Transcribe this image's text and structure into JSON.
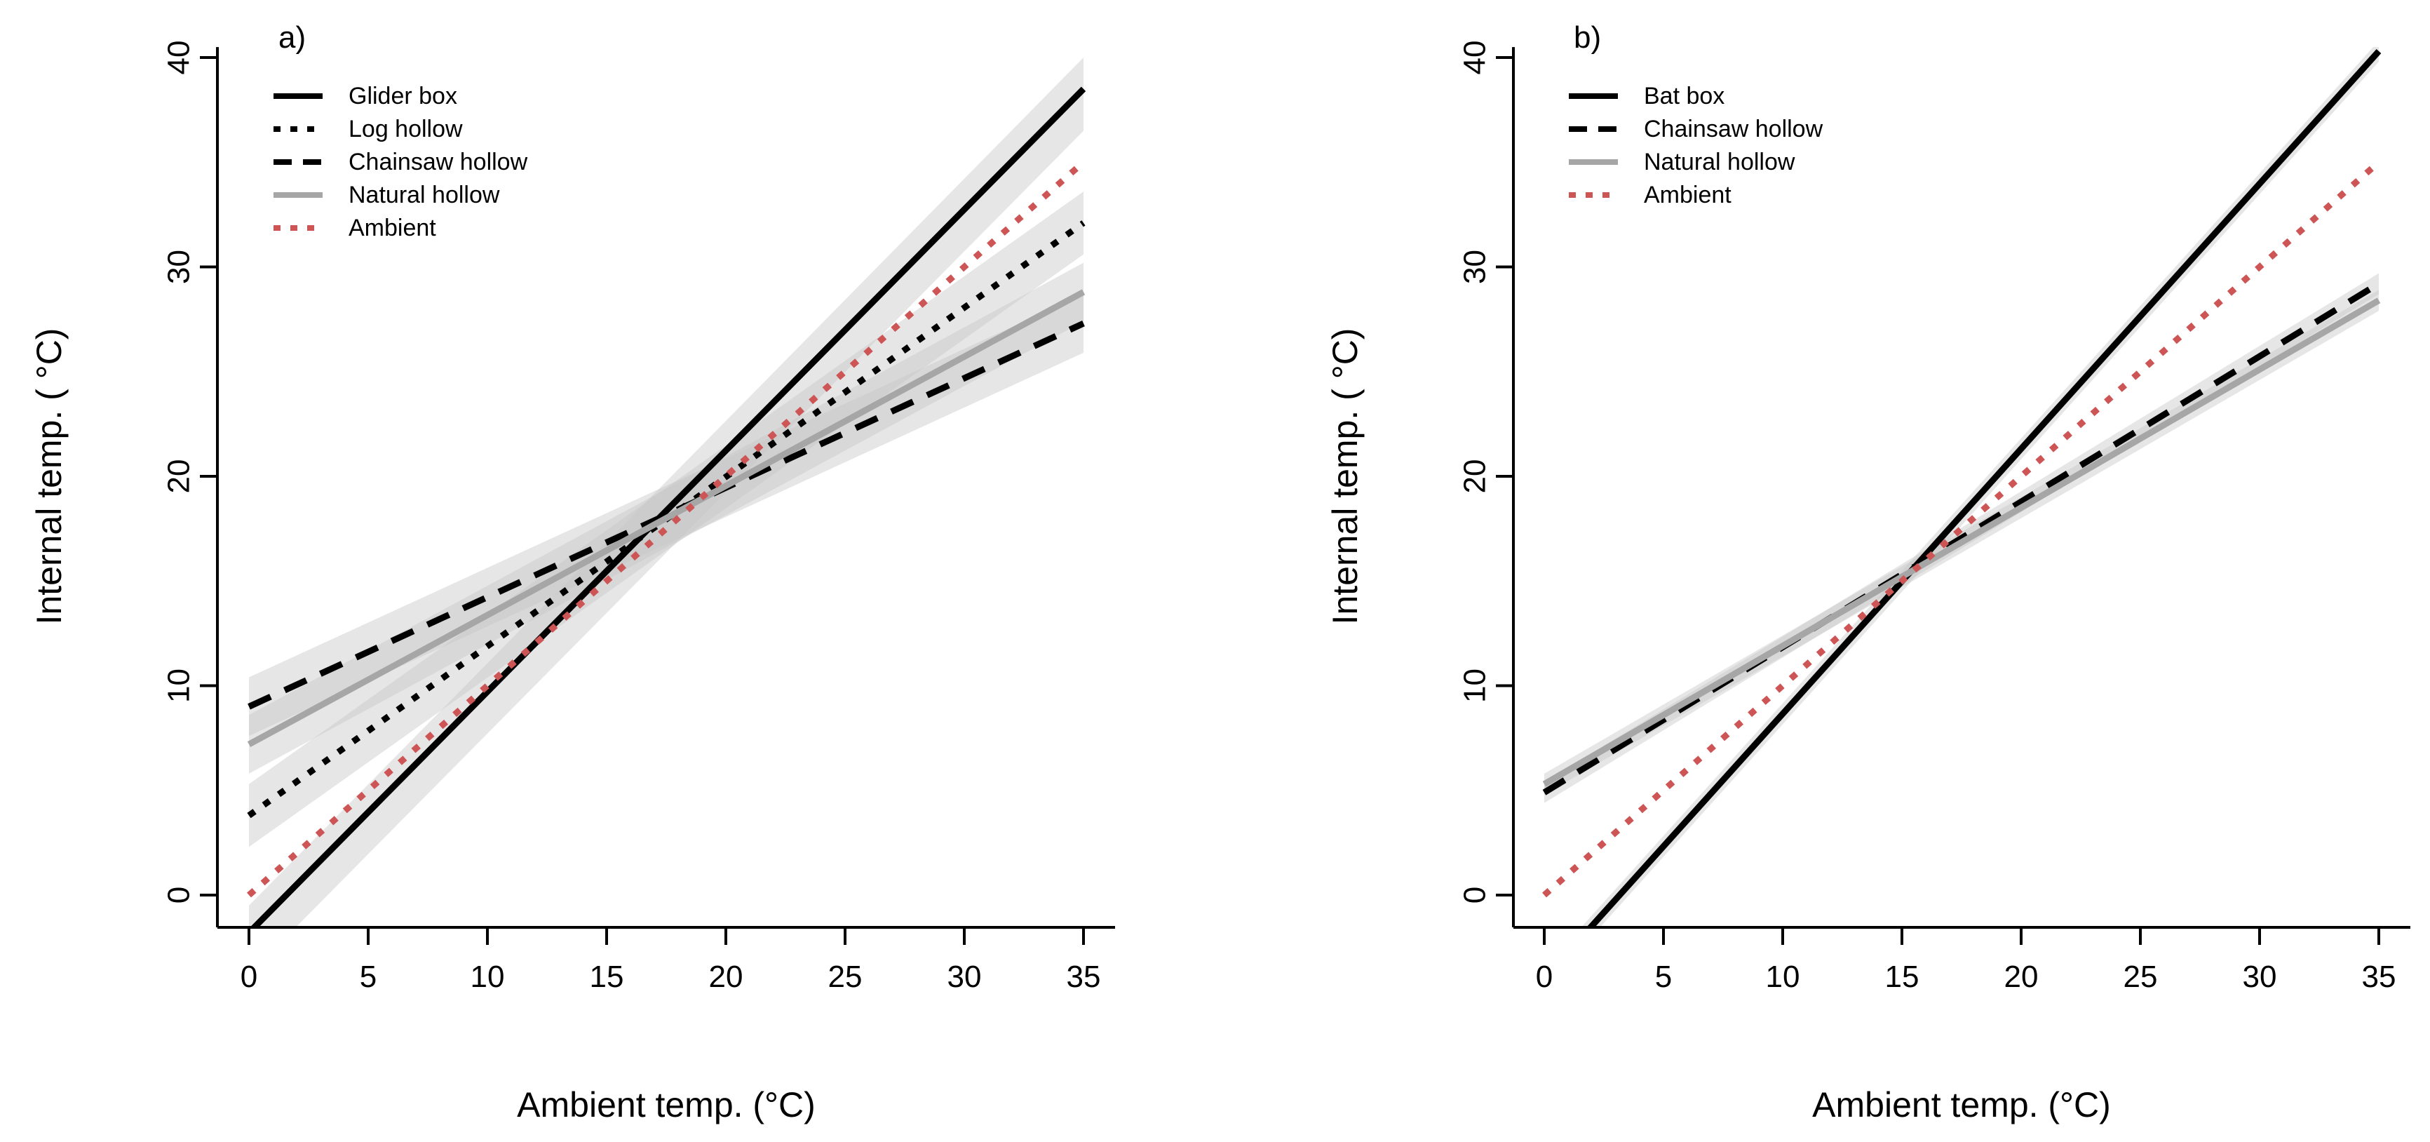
{
  "chart_data": [
    {
      "type": "line",
      "panel_label": "a)",
      "xlabel": "Ambient temp. (°C)",
      "ylabel": "Internal temp. ( °C)",
      "xlim": [
        0,
        35
      ],
      "ylim": [
        -1.5,
        40.5
      ],
      "xticks": [
        0,
        5,
        10,
        15,
        20,
        25,
        30,
        35
      ],
      "yticks": [
        0,
        10,
        20,
        30,
        40
      ],
      "grid": false,
      "legend_position": "top-left",
      "confidence_bands": true,
      "series": [
        {
          "name": "Glider box",
          "x": [
            0,
            35
          ],
          "y": [
            -1.8,
            38.5
          ],
          "ci": [
            [
              -3.8,
              -0.5
            ],
            [
              36.5,
              40.0
            ]
          ],
          "style": "solid",
          "color": "#000000"
        },
        {
          "name": "Log hollow",
          "x": [
            0,
            35
          ],
          "y": [
            3.8,
            32.1
          ],
          "ci": [
            [
              2.3,
              5.3
            ],
            [
              30.6,
              33.6
            ]
          ],
          "style": "dotted",
          "color": "#000000"
        },
        {
          "name": "Chainsaw hollow",
          "x": [
            0,
            35
          ],
          "y": [
            9.0,
            27.3
          ],
          "ci": [
            [
              7.6,
              10.4
            ],
            [
              25.9,
              28.7
            ]
          ],
          "style": "dashed",
          "color": "#000000"
        },
        {
          "name": "Natural hollow",
          "x": [
            0,
            35
          ],
          "y": [
            7.2,
            28.8
          ],
          "ci": [
            [
              5.8,
              8.6
            ],
            [
              27.4,
              30.2
            ]
          ],
          "style": "solid",
          "color": "#a6a6a6"
        },
        {
          "name": "Ambient",
          "x": [
            0,
            35
          ],
          "y": [
            0,
            35
          ],
          "style": "dotted",
          "color": "#cd5555"
        }
      ]
    },
    {
      "type": "line",
      "panel_label": "b)",
      "xlabel": "Ambient temp. (°C)",
      "ylabel": "Internal temp. ( °C)",
      "xlim": [
        0,
        35
      ],
      "ylim": [
        -1.5,
        40.5
      ],
      "xticks": [
        0,
        5,
        10,
        15,
        20,
        25,
        30,
        35
      ],
      "yticks": [
        0,
        10,
        20,
        30,
        40
      ],
      "grid": false,
      "legend_position": "top-left",
      "confidence_bands": true,
      "series": [
        {
          "name": "Bat box",
          "x": [
            0,
            35
          ],
          "y": [
            -4.0,
            40.3
          ],
          "ci": [
            [
              -4.5,
              -3.5
            ],
            [
              39.8,
              40.8
            ]
          ],
          "style": "solid",
          "color": "#000000"
        },
        {
          "name": "Chainsaw hollow",
          "x": [
            0,
            35
          ],
          "y": [
            4.9,
            29.2
          ],
          "ci": [
            [
              4.4,
              5.4
            ],
            [
              28.7,
              29.7
            ]
          ],
          "style": "dashed",
          "color": "#000000"
        },
        {
          "name": "Natural hollow",
          "x": [
            0,
            35
          ],
          "y": [
            5.3,
            28.4
          ],
          "ci": [
            [
              4.8,
              5.8
            ],
            [
              27.9,
              28.9
            ]
          ],
          "style": "solid",
          "color": "#a6a6a6"
        },
        {
          "name": "Ambient",
          "x": [
            0,
            35
          ],
          "y": [
            0,
            35
          ],
          "style": "dotted",
          "color": "#cd5555"
        }
      ]
    }
  ]
}
